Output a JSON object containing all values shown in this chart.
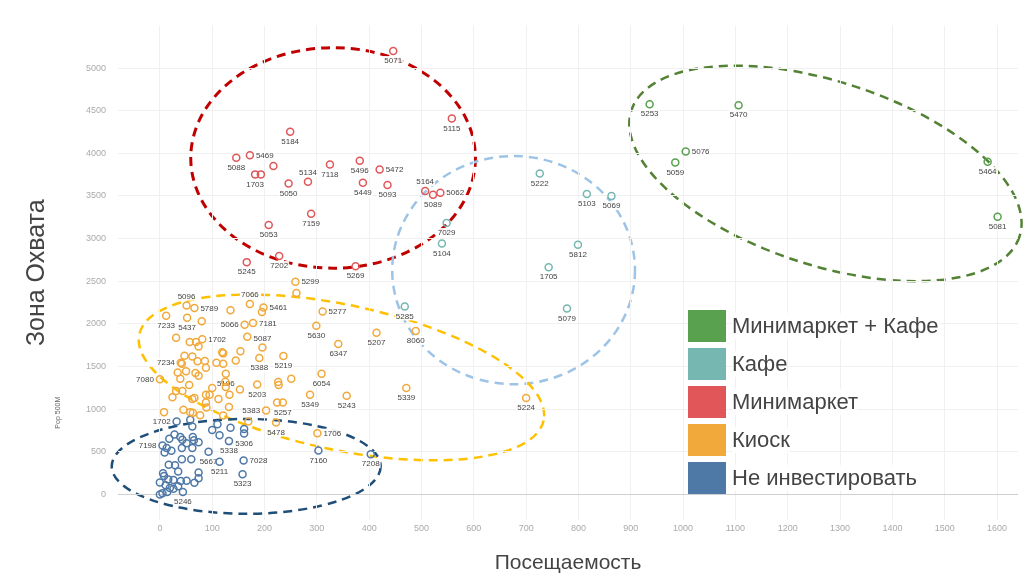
{
  "chart_data": {
    "type": "scatter",
    "xlabel": "Посещаемость",
    "ylabel": "Зона Охвата",
    "annotations": [
      "Pop 500M",
      {
        "text": "5253",
        "x": 936,
        "y": 4575
      },
      {
        "text": "5470",
        "x": 1106,
        "y": 4565
      },
      {
        "text": "5076",
        "x": 1005,
        "y": 4021
      },
      {
        "text": "5059",
        "x": 985,
        "y": 3891
      },
      {
        "text": "5464",
        "x": 1582,
        "y": 3901
      },
      {
        "text": "5081",
        "x": 1601,
        "y": 3257
      },
      {
        "text": "5222",
        "x": 726,
        "y": 3762
      },
      {
        "text": "5103",
        "x": 816,
        "y": 3523
      },
      {
        "text": "5069",
        "x": 863,
        "y": 3498
      },
      {
        "text": "7029",
        "x": 548,
        "y": 3183
      },
      {
        "text": "5104",
        "x": 539,
        "y": 2943
      },
      {
        "text": "5812",
        "x": 799,
        "y": 2929
      },
      {
        "text": "1705",
        "x": 743,
        "y": 2664
      },
      {
        "text": "5079",
        "x": 778,
        "y": 2180
      },
      {
        "text": "5285",
        "x": 468,
        "y": 2205
      },
      {
        "text": "5071",
        "x": 446,
        "y": 5200
      },
      {
        "text": "5115",
        "x": 558,
        "y": 4407
      },
      {
        "text": "5184",
        "x": 249,
        "y": 4252
      },
      {
        "text": "5088",
        "x": 146,
        "y": 3949
      },
      {
        "text": "5469",
        "x": 172,
        "y": 3976
      },
      {
        "text": "1703",
        "x": 182,
        "y": 3753
      },
      {
        "text": "7118",
        "x": 325,
        "y": 3870
      },
      {
        "text": "5496",
        "x": 382,
        "y": 3912
      },
      {
        "text": "5472",
        "x": 420,
        "y": 3810
      },
      {
        "text": "5050",
        "x": 246,
        "y": 3647
      },
      {
        "text": "5134",
        "x": 283,
        "y": 3666
      },
      {
        "text": "5449",
        "x": 388,
        "y": 3655
      },
      {
        "text": "5093",
        "x": 435,
        "y": 3628
      },
      {
        "text": "5164",
        "x": 507,
        "y": 3557
      },
      {
        "text": "5089",
        "x": 522,
        "y": 3515
      },
      {
        "text": "5062",
        "x": 536,
        "y": 3537
      },
      {
        "text": "7159",
        "x": 289,
        "y": 3291
      },
      {
        "text": "5053",
        "x": 208,
        "y": 3160
      },
      {
        "text": "7202",
        "x": 228,
        "y": 2796
      },
      {
        "text": "5245",
        "x": 166,
        "y": 2724
      },
      {
        "text": "5269",
        "x": 374,
        "y": 2676
      },
      {
        "text": "5299",
        "x": 259,
        "y": 2494
      },
      {
        "text": "7066",
        "x": 172,
        "y": 2233
      },
      {
        "text": "5096",
        "x": 51,
        "y": 2214
      },
      {
        "text": "5789",
        "x": 66,
        "y": 2185
      },
      {
        "text": "7233",
        "x": 12,
        "y": 2095
      },
      {
        "text": "5437",
        "x": 52,
        "y": 2071
      },
      {
        "text": "5461",
        "x": 198,
        "y": 2192
      },
      {
        "text": "5277",
        "x": 311,
        "y": 2144
      },
      {
        "text": "5066",
        "x": 162,
        "y": 1990
      },
      {
        "text": "7181",
        "x": 178,
        "y": 2010
      },
      {
        "text": "5630",
        "x": 299,
        "y": 1977
      },
      {
        "text": "5207",
        "x": 414,
        "y": 1897
      },
      {
        "text": "8060",
        "x": 489,
        "y": 1917
      },
      {
        "text": "1702",
        "x": 81,
        "y": 1820
      },
      {
        "text": "5087",
        "x": 196,
        "y": 1723
      },
      {
        "text": "6347",
        "x": 341,
        "y": 1763
      },
      {
        "text": "5219",
        "x": 236,
        "y": 1622
      },
      {
        "text": "5388",
        "x": 190,
        "y": 1601
      },
      {
        "text": "7234",
        "x": 40,
        "y": 1545
      },
      {
        "text": "5196",
        "x": 126,
        "y": 1415
      },
      {
        "text": "5203",
        "x": 186,
        "y": 1290
      },
      {
        "text": "6054",
        "x": 309,
        "y": 1415
      },
      {
        "text": "7080",
        "x": 0,
        "y": 1350
      },
      {
        "text": "5349",
        "x": 287,
        "y": 1168
      },
      {
        "text": "5243",
        "x": 357,
        "y": 1156
      },
      {
        "text": "5339",
        "x": 471,
        "y": 1249
      },
      {
        "text": "5224",
        "x": 700,
        "y": 1132
      },
      {
        "text": "5383",
        "x": 203,
        "y": 985
      },
      {
        "text": "5257",
        "x": 235,
        "y": 1079
      },
      {
        "text": "5478",
        "x": 222,
        "y": 844
      },
      {
        "text": "1706",
        "x": 301,
        "y": 718
      },
      {
        "text": "1702",
        "x": 32,
        "y": 856
      },
      {
        "text": "5306",
        "x": 161,
        "y": 715
      },
      {
        "text": "5338",
        "x": 132,
        "y": 625
      },
      {
        "text": "7198",
        "x": 5,
        "y": 573
      },
      {
        "text": "5667",
        "x": 93,
        "y": 500
      },
      {
        "text": "5211",
        "x": 114,
        "y": 383
      },
      {
        "text": "7028",
        "x": 160,
        "y": 399
      },
      {
        "text": "7160",
        "x": 303,
        "y": 516
      },
      {
        "text": "7208",
        "x": 403,
        "y": 472
      },
      {
        "text": "5323",
        "x": 158,
        "y": 237
      },
      {
        "text": "5246",
        "x": 44,
        "y": 27
      }
    ],
    "xlim": [
      -80,
      1640
    ],
    "ylim": [
      -300,
      5500
    ],
    "xticks": [
      0,
      100,
      200,
      300,
      400,
      500,
      600,
      700,
      800,
      900,
      1000,
      1100,
      1200,
      1300,
      1400,
      1500,
      1600
    ],
    "yticks": [
      0,
      500,
      1000,
      1500,
      2000,
      2500,
      3000,
      3500,
      4000,
      4500,
      5000
    ],
    "grid": true,
    "legend": "bottom right",
    "marker": "circle",
    "series": [
      {
        "name": "Минимаркет + Кафе",
        "color": "#59a14f",
        "x": [
          936,
          1106,
          1005,
          985,
          1582,
          1601
        ],
        "values": [
          4575,
          4565,
          4021,
          3891,
          3901,
          3257
        ]
      },
      {
        "name": "Кафе",
        "color": "#76b7b2",
        "x": [
          726,
          816,
          863,
          548,
          539,
          799,
          743,
          778,
          468
        ],
        "values": [
          3762,
          3523,
          3498,
          3183,
          2943,
          2929,
          2664,
          2180,
          2205
        ]
      },
      {
        "name": "Минимаркет",
        "color": "#e15759",
        "x": [
          446,
          558,
          249,
          146,
          172,
          217,
          182,
          193,
          325,
          382,
          420,
          246,
          283,
          388,
          435,
          507,
          522,
          536,
          289,
          208,
          228,
          166,
          374
        ],
        "values": [
          5200,
          4407,
          4252,
          3949,
          3976,
          3851,
          3753,
          3753,
          3870,
          3912,
          3810,
          3647,
          3666,
          3655,
          3628,
          3557,
          3515,
          3537,
          3291,
          3160,
          2796,
          2724,
          2676
        ]
      },
      {
        "name": "Киоск",
        "color": "#f2a93b",
        "x": [
          259,
          261,
          172,
          51,
          66,
          12,
          52,
          80,
          135,
          198,
          195,
          311,
          162,
          178,
          299,
          414,
          489,
          31,
          57,
          69,
          81,
          74,
          167,
          196,
          341,
          236,
          119,
          121,
          154,
          145,
          190,
          47,
          62,
          40,
          42,
          72,
          86,
          88,
          108,
          121,
          34,
          50,
          39,
          68,
          74,
          126,
          125,
          126,
          186,
          226,
          227,
          251,
          309,
          0,
          56,
          31,
          43,
          24,
          62,
          66,
          100,
          88,
          95,
          112,
          133,
          153,
          287,
          357,
          471,
          700,
          8,
          45,
          58,
          63,
          88,
          89,
          77,
          132,
          121,
          203,
          224,
          235,
          169,
          222,
          301
        ],
        "values": [
          2494,
          2362,
          2233,
          2214,
          2185,
          2095,
          2071,
          2030,
          2160,
          2192,
          2140,
          2144,
          1990,
          2010,
          1977,
          1897,
          1917,
          1836,
          1788,
          1788,
          1820,
          1735,
          1848,
          1723,
          1763,
          1622,
          1666,
          1654,
          1678,
          1569,
          1601,
          1625,
          1617,
          1545,
          1532,
          1561,
          1565,
          1484,
          1545,
          1532,
          1431,
          1444,
          1355,
          1423,
          1391,
          1415,
          1322,
          1261,
          1290,
          1318,
          1282,
          1355,
          1415,
          1350,
          1282,
          1213,
          1213,
          1140,
          1120,
          1132,
          1249,
          1168,
          1168,
          1120,
          1168,
          1229,
          1168,
          1156,
          1249,
          1132,
          965,
          993,
          965,
          957,
          1079,
          1018,
          929,
          1026,
          925,
          985,
          1079,
          1079,
          856,
          844,
          718
        ]
      },
      {
        "name": "Не инвестировать",
        "color": "#4e79a7",
        "x": [
          32,
          58,
          62,
          100,
          110,
          114,
          135,
          161,
          161,
          132,
          28,
          18,
          39,
          43,
          63,
          65,
          74,
          51,
          5,
          13,
          9,
          22,
          42,
          62,
          93,
          114,
          160,
          303,
          403,
          158,
          42,
          60,
          29,
          17,
          35,
          6,
          8,
          16,
          26,
          0,
          40,
          51,
          66,
          74,
          74,
          11,
          19,
          5,
          14,
          26,
          44,
          0,
          35
        ],
        "values": [
          856,
          876,
          796,
          755,
          824,
          694,
          783,
          767,
          715,
          625,
          702,
          654,
          674,
          642,
          674,
          634,
          613,
          601,
          573,
          545,
          492,
          513,
          545,
          545,
          500,
          383,
          399,
          516,
          472,
          237,
          412,
          412,
          343,
          347,
          270,
          249,
          217,
          176,
          168,
          140,
          156,
          160,
          136,
          189,
          257,
          107,
          75,
          15,
          27,
          67,
          27,
          0,
          96
        ]
      }
    ]
  }
}
